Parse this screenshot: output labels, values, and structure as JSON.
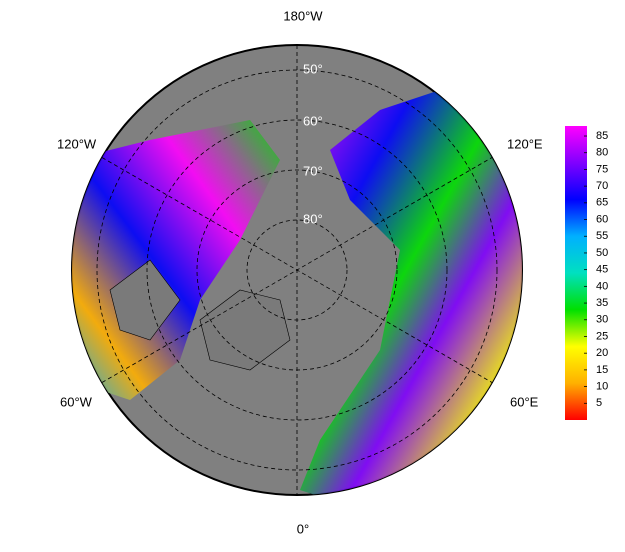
{
  "map": {
    "longitude_labels": [
      "180°W",
      "120°E",
      "60°E",
      "0°",
      "60°W",
      "120°W"
    ],
    "latitude_labels": [
      "50°",
      "60°",
      "70°",
      "80°"
    ]
  },
  "colorbar": {
    "range": [
      0,
      88
    ],
    "ticks": [
      5,
      10,
      15,
      20,
      25,
      30,
      35,
      40,
      45,
      50,
      55,
      60,
      65,
      70,
      75,
      80,
      85
    ],
    "colors": [
      "#ff0000",
      "#ffb000",
      "#ffff00",
      "#00e000",
      "#00e0c0",
      "#00b0ff",
      "#0000ff",
      "#8000ff",
      "#ff00ff"
    ]
  }
}
